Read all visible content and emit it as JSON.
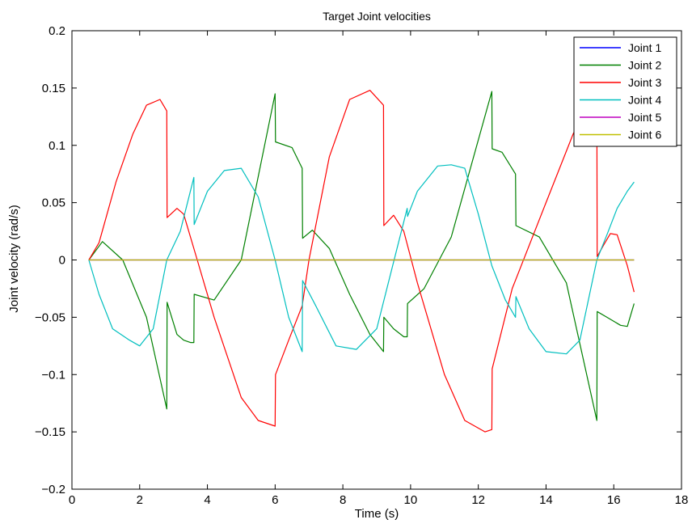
{
  "chart_data": {
    "type": "line",
    "title": "Target Joint velocities",
    "xlabel": "Time (s)",
    "ylabel": "Joint velocity (rad/s)",
    "xlim": [
      0,
      18
    ],
    "ylim": [
      -0.2,
      0.2
    ],
    "xticks": [
      0,
      2,
      4,
      6,
      8,
      10,
      12,
      14,
      16,
      18
    ],
    "yticks": [
      -0.2,
      -0.15,
      -0.1,
      -0.05,
      0,
      0.05,
      0.1,
      0.15,
      0.2
    ],
    "xtick_labels": [
      "0",
      "2",
      "4",
      "6",
      "8",
      "10",
      "12",
      "14",
      "16",
      "18"
    ],
    "ytick_labels": [
      "−0.2",
      "−0.15",
      "−0.1",
      "−0.05",
      "0",
      "0.05",
      "0.1",
      "0.15",
      "0.2"
    ],
    "grid": false,
    "legend_position": "top-right",
    "series": [
      {
        "name": "Joint 1",
        "color": "#0000ff",
        "x": [
          0.5,
          16.6
        ],
        "y": [
          0,
          0
        ]
      },
      {
        "name": "Joint 2",
        "color": "#008000",
        "x": [
          0.5,
          0.9,
          1.5,
          2.2,
          2.8,
          2.81,
          3.1,
          3.3,
          3.5,
          3.6,
          3.61,
          4.2,
          5.0,
          6.0,
          6.01,
          6.5,
          6.8,
          6.81,
          7.1,
          7.6,
          8.2,
          8.8,
          9.2,
          9.21,
          9.5,
          9.8,
          9.9,
          9.91,
          10.4,
          11.2,
          12.4,
          12.41,
          12.7,
          13.1,
          13.11,
          13.8,
          14.6,
          15.5,
          15.51,
          15.8,
          16.2,
          16.4,
          16.6
        ],
        "y": [
          0,
          0.016,
          0,
          -0.05,
          -0.13,
          -0.037,
          -0.065,
          -0.07,
          -0.072,
          -0.072,
          -0.03,
          -0.035,
          0,
          0.145,
          0.103,
          0.098,
          0.08,
          0.019,
          0.026,
          0.01,
          -0.03,
          -0.065,
          -0.08,
          -0.05,
          -0.06,
          -0.067,
          -0.067,
          -0.038,
          -0.025,
          0.02,
          0.147,
          0.097,
          0.094,
          0.075,
          0.03,
          0.02,
          -0.02,
          -0.14,
          -0.045,
          -0.05,
          -0.057,
          -0.058,
          -0.038
        ]
      },
      {
        "name": "Joint 3",
        "color": "#ff0000",
        "x": [
          0.5,
          0.8,
          1.3,
          1.8,
          2.2,
          2.6,
          2.8,
          2.81,
          3.1,
          3.3,
          3.7,
          4.2,
          5.0,
          5.5,
          6.0,
          6.01,
          6.4,
          6.8,
          7.0,
          7.6,
          8.2,
          8.8,
          9.2,
          9.21,
          9.5,
          9.8,
          10.2,
          11.0,
          11.6,
          12.2,
          12.4,
          12.41,
          13.0,
          14.0,
          14.8,
          15.4,
          15.5,
          15.51,
          15.7,
          15.9,
          16.1,
          16.4,
          16.6
        ],
        "y": [
          0,
          0.015,
          0.068,
          0.11,
          0.135,
          0.14,
          0.13,
          0.037,
          0.045,
          0.04,
          0,
          -0.05,
          -0.12,
          -0.14,
          -0.145,
          -0.1,
          -0.07,
          -0.04,
          0,
          0.09,
          0.14,
          0.148,
          0.135,
          0.03,
          0.039,
          0.025,
          -0.02,
          -0.1,
          -0.14,
          -0.15,
          -0.148,
          -0.095,
          -0.025,
          0.05,
          0.11,
          0.145,
          0.14,
          0.003,
          0.013,
          0.023,
          0.022,
          -0.005,
          -0.028
        ]
      },
      {
        "name": "Joint 4",
        "color": "#00bfbf",
        "x": [
          0.5,
          0.8,
          1.2,
          1.7,
          2.0,
          2.4,
          2.8,
          3.2,
          3.6,
          3.61,
          4.0,
          4.5,
          5.0,
          5.5,
          6.0,
          6.4,
          6.8,
          6.81,
          7.2,
          7.8,
          8.4,
          9.0,
          9.6,
          9.9,
          9.91,
          10.2,
          10.8,
          11.2,
          11.6,
          12.0,
          12.4,
          12.8,
          13.1,
          13.11,
          13.5,
          14.0,
          14.6,
          15.0,
          15.5,
          15.8,
          16.1,
          16.4,
          16.6
        ],
        "y": [
          0,
          -0.03,
          -0.06,
          -0.07,
          -0.075,
          -0.06,
          0,
          0.025,
          0.072,
          0.031,
          0.06,
          0.078,
          0.08,
          0.055,
          0,
          -0.05,
          -0.08,
          -0.018,
          -0.04,
          -0.075,
          -0.078,
          -0.06,
          0.01,
          0.045,
          0.038,
          0.06,
          0.082,
          0.083,
          0.08,
          0.04,
          -0.005,
          -0.035,
          -0.05,
          -0.032,
          -0.06,
          -0.08,
          -0.082,
          -0.07,
          0,
          0.022,
          0.045,
          0.06,
          0.068
        ]
      },
      {
        "name": "Joint 5",
        "color": "#bf00bf",
        "x": [
          0.5,
          16.6
        ],
        "y": [
          0,
          0
        ]
      },
      {
        "name": "Joint 6",
        "color": "#bfbf00",
        "x": [
          0.5,
          16.6
        ],
        "y": [
          0,
          0
        ]
      }
    ]
  }
}
